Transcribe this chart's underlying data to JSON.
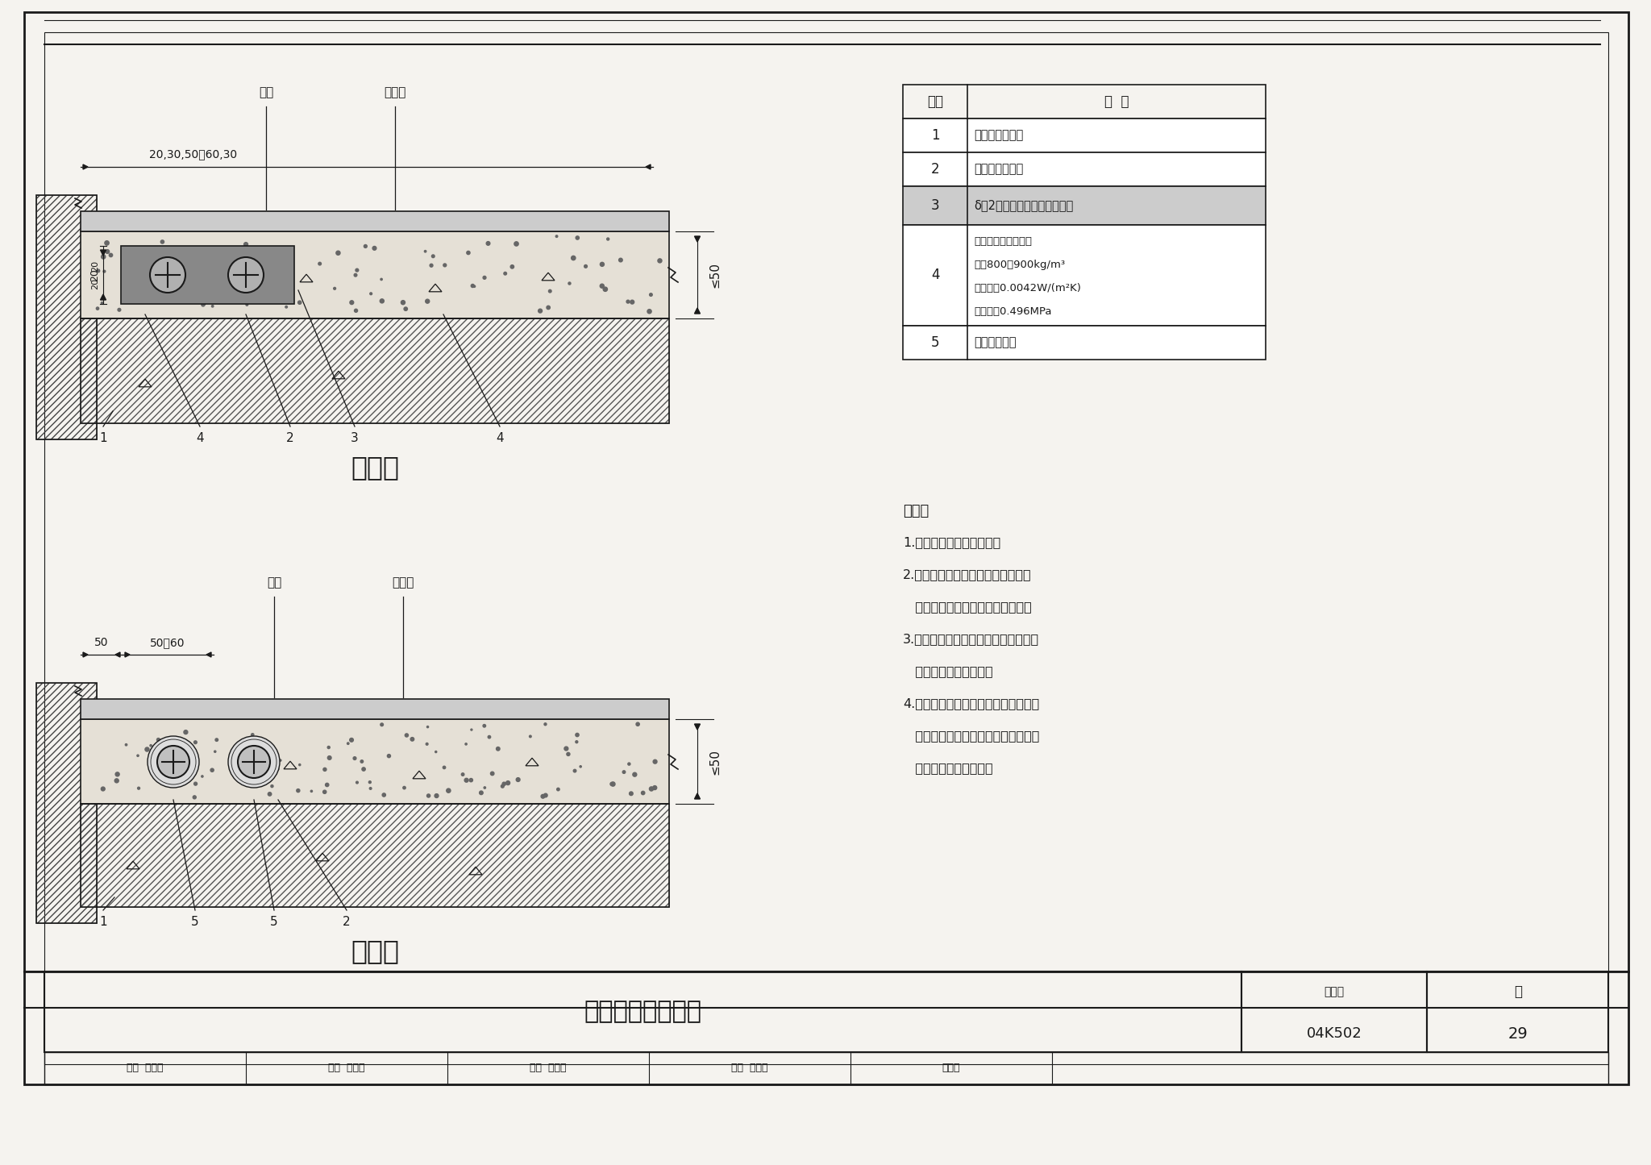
{
  "title": "埋地管道做法示意",
  "figure_number": "04K502",
  "page": "29",
  "bg_color": "#f5f3ef",
  "lc": "#1a1a1a",
  "table_rows": [
    [
      "1",
      "埋地采暖供水管"
    ],
    [
      "2",
      "埋地采暖回水管"
    ],
    [
      "3",
      "δ＝2塑料槽（根据情况选用）"
    ],
    [
      "4",
      "复合硅酸盐保温材料\n容重800～900kg/m³\n导热系数0.0042W/(m²K)\n抗压强度0.496MPa"
    ],
    [
      "5",
      "塑料波纹套管"
    ]
  ],
  "notes": [
    "说明：",
    "1.管道安装时应保持清洁。",
    "2.管道保持一定压力用保温或填充层",
    "   材料进行隐蔽，压力按设计要求。",
    "3.为防止地面龟裂，埋设在填充层内的",
    "   管道宜采取绝热措施。",
    "4.放射双管系统管道密集的部位应采用",
    "   带塑料波纹的套管，以防止地面由于",
    "   温度过高而引起龟裂。"
  ],
  "form1_label": "形式一",
  "form2_label": "形式二",
  "label_face": "面层",
  "label_fill": "填充层",
  "footer_title": "埋地管道做法示意",
  "footer_bh": "图集号",
  "footer_code": "04K502",
  "footer_page_label": "页",
  "footer_page": "29",
  "footer_items": [
    [
      "审核",
      "苏智华"
    ],
    [
      "设计",
      "刘春花"
    ],
    [
      "校对",
      "竹御珠"
    ],
    [
      "设计",
      "赵立民"
    ],
    [
      "赵立民",
      ""
    ]
  ]
}
